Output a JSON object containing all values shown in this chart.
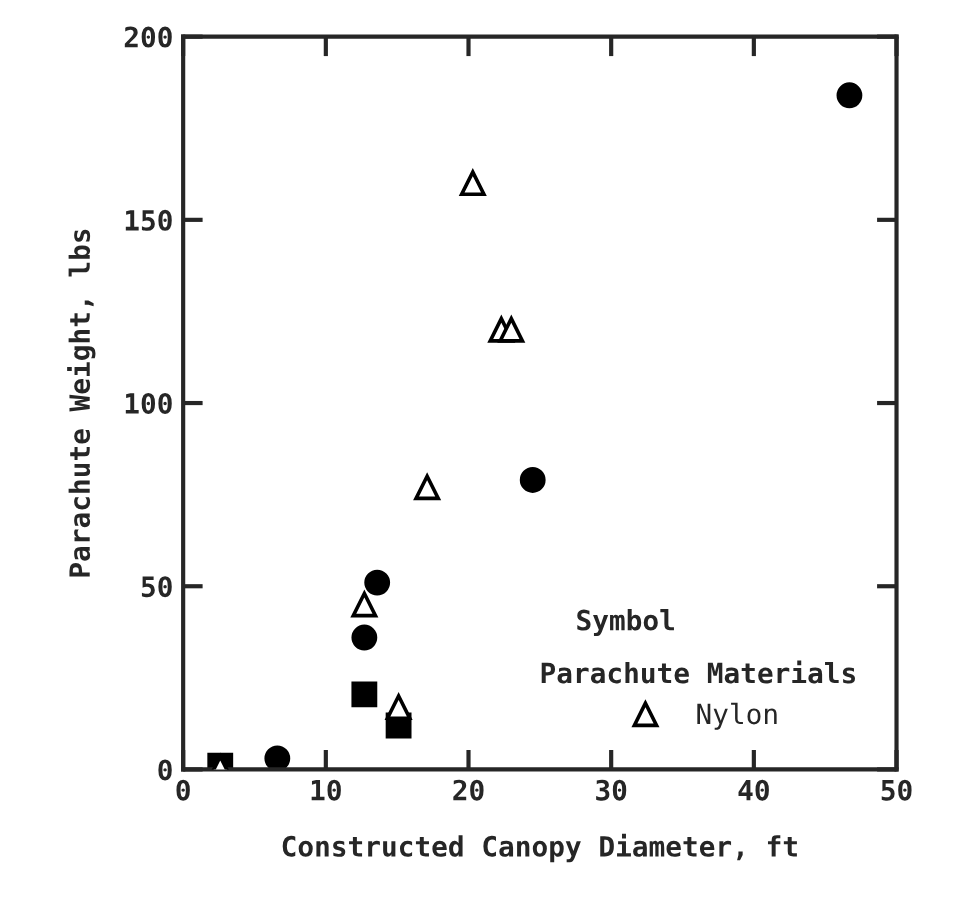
{
  "chart_data": {
    "type": "scatter",
    "xlabel": "Constructed Canopy Diameter, ft",
    "ylabel": "Parachute Weight, lbs",
    "legend_title": "Parachute Materials",
    "annotations": [
      "Symbol"
    ],
    "xlim": [
      0,
      50
    ],
    "xticks": [
      0,
      10,
      20,
      30,
      40,
      50
    ],
    "ylim": [
      0,
      200
    ],
    "yticks": [
      0,
      50,
      100,
      150,
      200
    ],
    "grid": false,
    "legend": "bottom right",
    "series": [
      {
        "color": "#000000",
        "marker": "square",
        "x": [
          2.6,
          12.7,
          15.1
        ],
        "values": [
          1,
          20.5,
          12
        ]
      },
      {
        "color": "#000000",
        "marker": "circle",
        "x": [
          6.6,
          12.7,
          13.6,
          24.5,
          46.7
        ],
        "values": [
          3,
          36,
          51,
          79,
          184
        ]
      },
      {
        "name": "Nylon",
        "color": "#000000",
        "marker": "triangle",
        "x": [
          2.6,
          12.7,
          15.1,
          17.1,
          20.3,
          22.3,
          23
        ],
        "values": [
          0.5,
          45,
          17,
          77,
          160,
          120,
          120
        ]
      }
    ]
  }
}
